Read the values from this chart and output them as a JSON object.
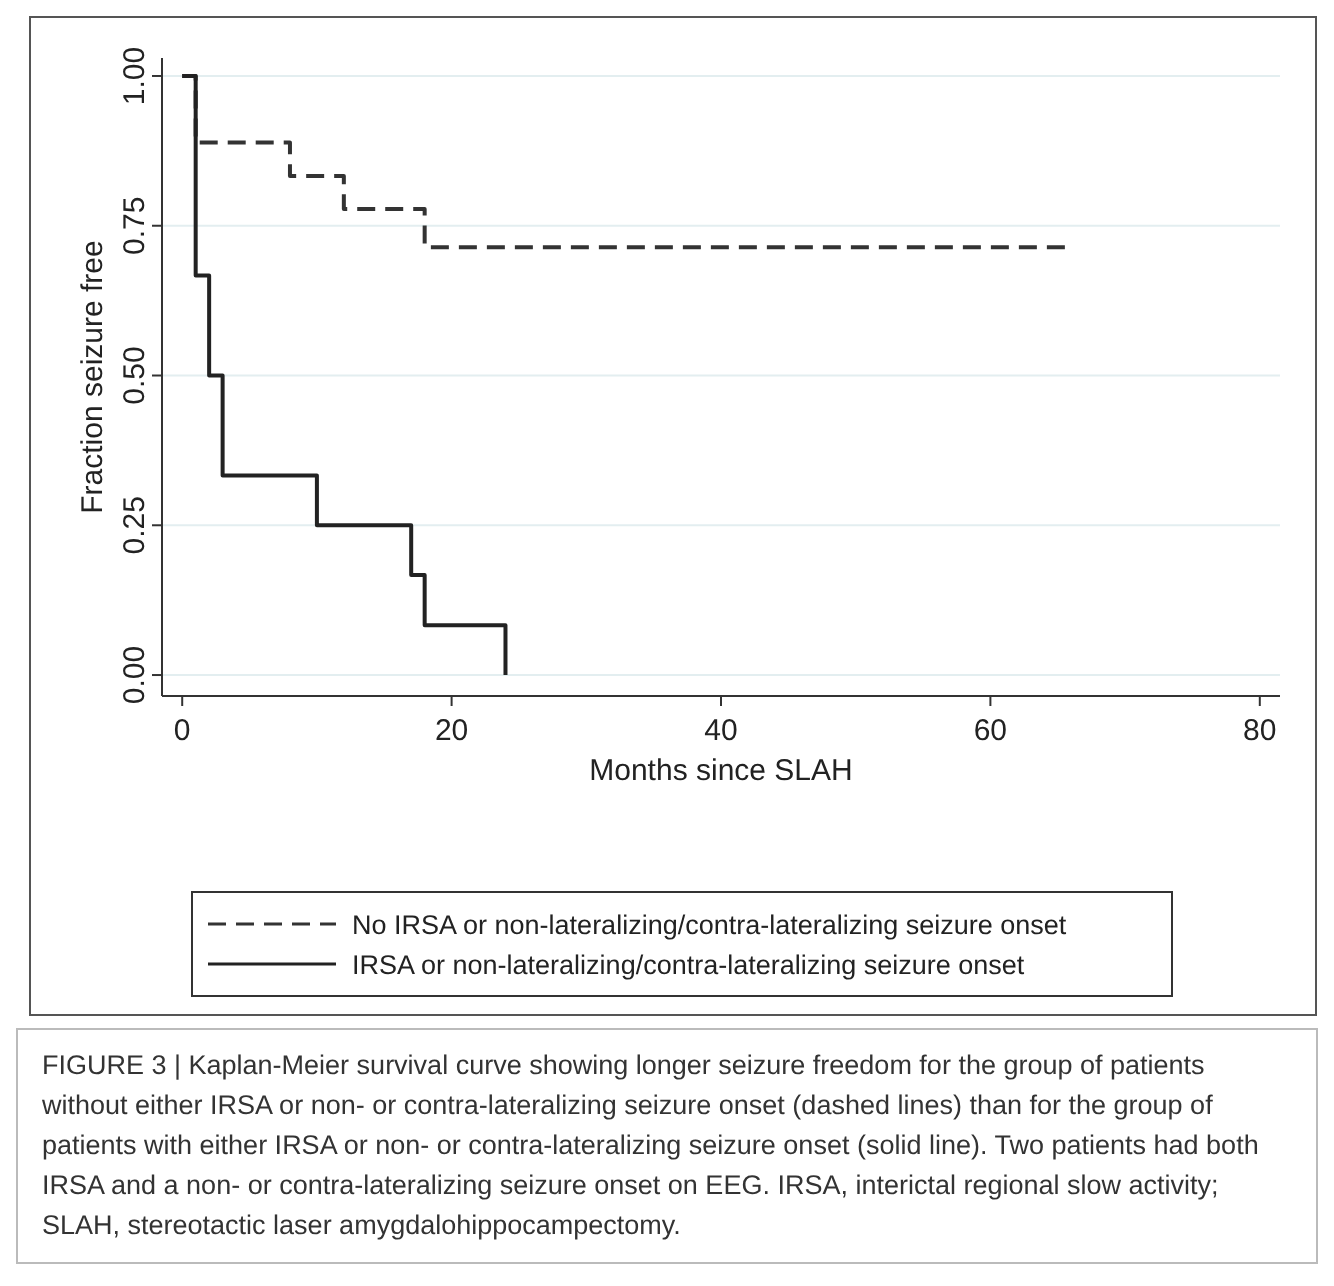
{
  "chart_data": {
    "type": "step",
    "xlabel": "Months since SLAH",
    "ylabel": "Fraction seizure free",
    "xlim": [
      -1.5,
      81.5
    ],
    "xticks": [
      0,
      20,
      40,
      60,
      80
    ],
    "ylim": [
      -0.035,
      1.03
    ],
    "yticks": [
      {
        "value": 0,
        "label": "0.00"
      },
      {
        "value": 0.25,
        "label": "0.25"
      },
      {
        "value": 0.5,
        "label": "0.50"
      },
      {
        "value": 0.75,
        "label": "0.75"
      },
      {
        "value": 1,
        "label": "1.00"
      }
    ],
    "grid": "y",
    "legend": "bottom",
    "series": [
      {
        "name": "No IRSA or non-lateralizing/contra-lateralizing seizure onset",
        "color": "#333333",
        "line_style": "dashed",
        "x": [
          0,
          1,
          8,
          12,
          18,
          66
        ],
        "values": [
          1,
          0.889,
          0.833,
          0.778,
          0.714,
          0.714
        ]
      },
      {
        "name": "IRSA or non-lateralizing/contra-lateralizing seizure onset",
        "color": "#222222",
        "line_style": "solid",
        "x": [
          0,
          1,
          2,
          3,
          10,
          17,
          18,
          24
        ],
        "values": [
          1,
          0.667,
          0.5,
          0.333,
          0.25,
          0.167,
          0.083,
          0
        ]
      }
    ],
    "annotations": [
      "FIGURE 3 | Kaplan-Meier survival curve showing longer seizure freedom for the group of patients without either IRSA or non- or contra-lateralizing seizure onset (dashed lines) than for the group of patients with either IRSA or non- or contra-lateralizing seizure onset (solid line). Two patients had both IRSA and a non- or contra-lateralizing seizure onset on EEG. IRSA, interictal regional slow activity; SLAH, stereotactic laser amygdalohippocampectomy."
    ]
  }
}
